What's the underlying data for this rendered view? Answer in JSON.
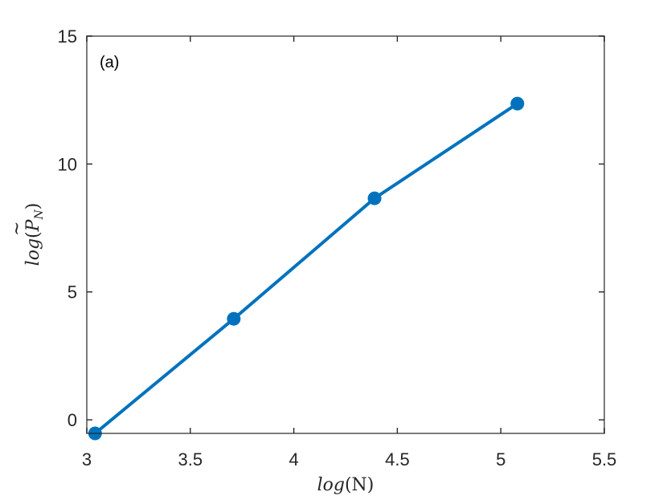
{
  "chart_data": {
    "type": "line",
    "title": "",
    "annotation": "(a)",
    "xlabel": "log(N)",
    "ylabel": "log(P̃_N)",
    "xlim": [
      3,
      5.5
    ],
    "ylim": [
      -0.53,
      15
    ],
    "xticks": [
      3,
      3.5,
      4,
      4.5,
      5,
      5.5
    ],
    "xtick_labels": [
      "3",
      "3.5",
      "4",
      "4.5",
      "5",
      "5.5"
    ],
    "yticks": [
      0,
      5,
      10,
      15
    ],
    "ytick_labels": [
      "0",
      "5",
      "10",
      "15"
    ],
    "grid": false,
    "legend": null,
    "series": [
      {
        "name": "log(P̃_N)",
        "color": "#0072BD",
        "marker": "circle",
        "x": [
          3.04,
          3.71,
          4.39,
          5.08
        ],
        "y": [
          -0.53,
          3.95,
          8.66,
          12.36
        ]
      }
    ]
  },
  "labels": {
    "annotation": "(a)",
    "xlabel_main": "log",
    "xlabel_arg": "(N)",
    "ylabel_main": "log",
    "ylabel_open": "(",
    "ylabel_P": "P",
    "ylabel_tilde": "~",
    "ylabel_sub": "N",
    "ylabel_close": ")"
  }
}
